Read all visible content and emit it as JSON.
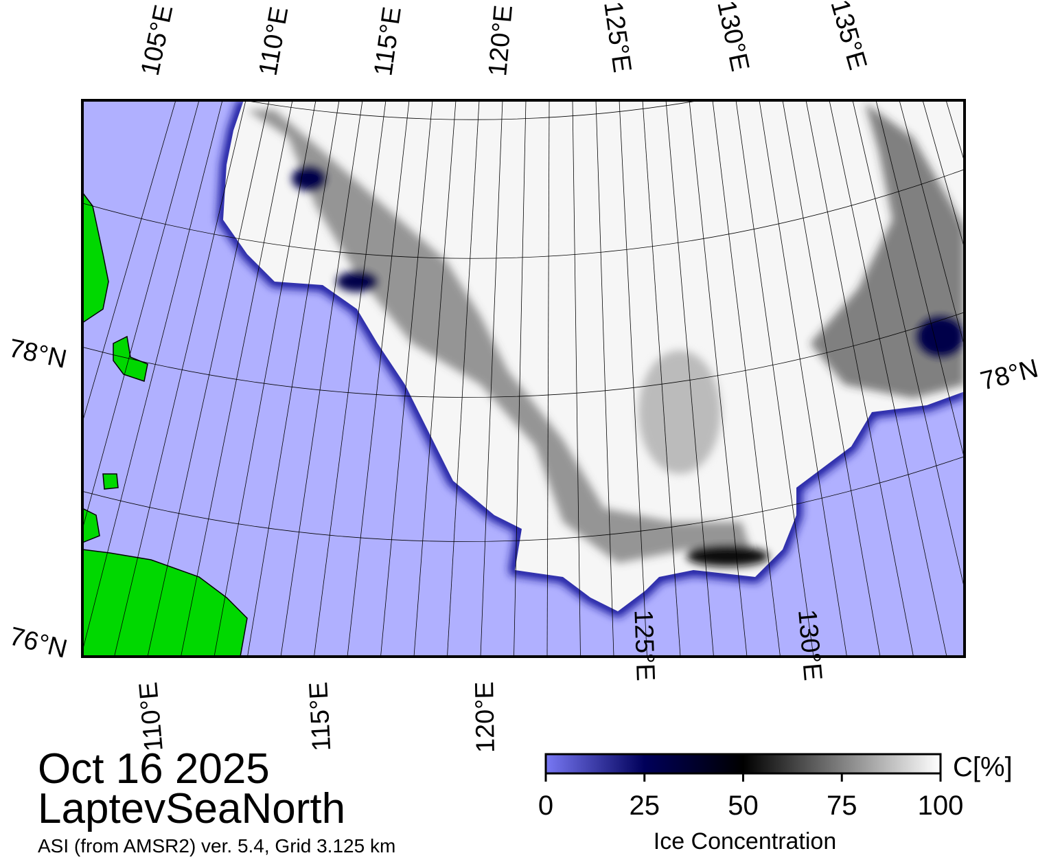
{
  "map": {
    "top_longitude_labels": [
      "105°E",
      "110°E",
      "115°E",
      "120°E",
      "125°E",
      "130°E",
      "135°E"
    ],
    "bottom_longitude_labels": [
      "110°E",
      "115°E",
      "120°E",
      "125°E",
      "130°E"
    ],
    "left_latitude_labels": [
      "78°N",
      "76°N"
    ],
    "right_latitude_labels": [
      "78°N"
    ]
  },
  "date": "Oct 16 2025",
  "region": "LaptevSeaNorth",
  "subtitle": "ASI (from AMSR2) ver. 5.4,  Grid 3.125 km",
  "colorbar": {
    "unit": "C[%]",
    "title": "Ice Concentration",
    "lim": [
      0,
      100
    ],
    "ticks": [
      0,
      25,
      50,
      75,
      100
    ]
  }
}
